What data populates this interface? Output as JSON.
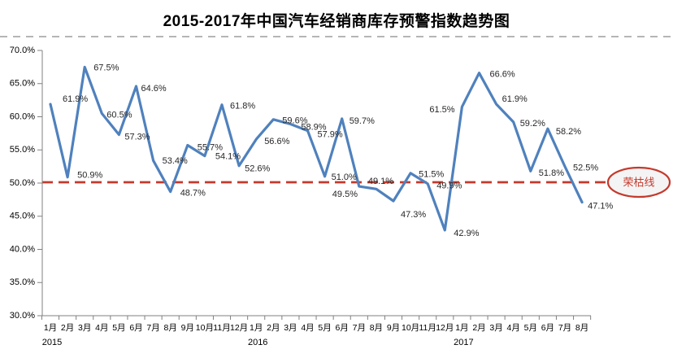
{
  "title": "2015-2017年中国汽车经销商库存预警指数趋势图",
  "chart_data": {
    "type": "line",
    "x": [
      "1月",
      "2月",
      "3月",
      "4月",
      "5月",
      "6月",
      "7月",
      "8月",
      "9月",
      "10月",
      "11月",
      "12月",
      "1月",
      "2月",
      "3月",
      "4月",
      "5月",
      "6月",
      "7月",
      "8月",
      "9月",
      "10月",
      "11月",
      "12月",
      "1月",
      "2月",
      "3月",
      "4月",
      "5月",
      "6月",
      "7月",
      "8月"
    ],
    "years": [
      {
        "label": "2015",
        "index": 0
      },
      {
        "label": "2016",
        "index": 12
      },
      {
        "label": "2017",
        "index": 24
      }
    ],
    "series": [
      {
        "name": "库存预警指数",
        "values": [
          61.9,
          50.9,
          67.5,
          60.5,
          57.3,
          64.6,
          53.4,
          48.7,
          55.7,
          54.1,
          61.8,
          52.6,
          56.6,
          59.6,
          58.9,
          57.9,
          51.0,
          59.7,
          49.5,
          49.1,
          47.3,
          51.5,
          49.9,
          42.9,
          61.5,
          66.6,
          61.9,
          59.2,
          51.8,
          58.2,
          52.5,
          47.1
        ]
      }
    ],
    "point_labels": [
      "61.9%",
      "50.9%",
      "67.5%",
      "60.5%",
      "57.3%",
      "64.6%",
      "53.4%",
      "48.7%",
      "55.7%",
      "54.1%",
      "61.8%",
      "52.6%",
      "56.6%",
      "59.6%",
      "58.9%",
      "57.9%",
      "51.0%",
      "59.7%",
      "49.5%",
      "49.1%",
      "47.3%",
      "51.5%",
      "49.9%",
      "42.9%",
      "61.5%",
      "66.6%",
      "61.9%",
      "59.2%",
      "51.8%",
      "58.2%",
      "52.5%",
      "47.1%"
    ],
    "ylim": [
      30,
      70
    ],
    "y_tick_labels": [
      "70.0%",
      "65.0%",
      "60.0%",
      "55.0%",
      "50.0%",
      "45.0%",
      "40.0%",
      "35.0%",
      "30.0%"
    ],
    "grid": false,
    "legend": "none",
    "threshold": {
      "value": 50,
      "label": "荣枯线"
    },
    "colors": {
      "line": "#4f81bd",
      "threshold": "#c43a2d",
      "axis": "#808080",
      "axis_text": "#000000",
      "data_label": "#262626",
      "separator": "#b5b5b5"
    }
  }
}
